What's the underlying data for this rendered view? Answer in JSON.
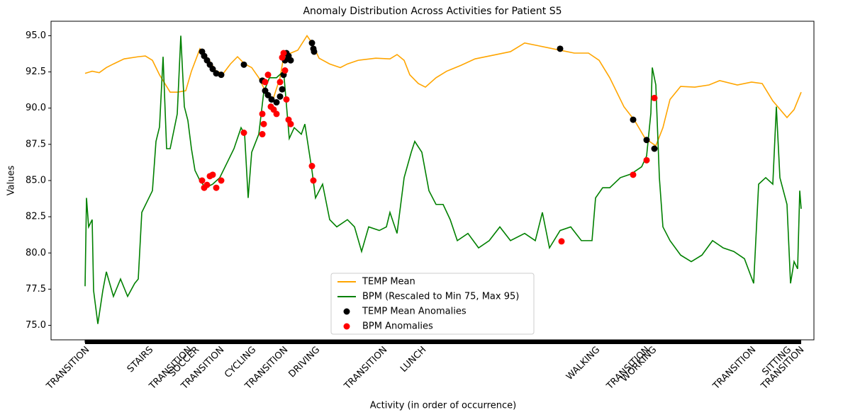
{
  "chart_data": {
    "type": "line",
    "title": "Anomaly Distribution Across Activities for Patient S5",
    "x_label": "Activity (in order of occurrence)",
    "y_label": "Values",
    "xlim": [
      -48,
      1028
    ],
    "ylim": [
      74,
      96
    ],
    "xticks": [
      {
        "value": 0,
        "label": "TRANSITION"
      },
      {
        "value": 90,
        "label": "STAIRS"
      },
      {
        "value": 145,
        "label": "TRANSITION"
      },
      {
        "value": 155,
        "label": "SOCCER"
      },
      {
        "value": 190,
        "label": "TRANSITION"
      },
      {
        "value": 235,
        "label": "CYCLING"
      },
      {
        "value": 280,
        "label": "TRANSITION"
      },
      {
        "value": 325,
        "label": "DRIVING"
      },
      {
        "value": 420,
        "label": "TRANSITION"
      },
      {
        "value": 475,
        "label": "LUNCH"
      },
      {
        "value": 720,
        "label": "WALKING"
      },
      {
        "value": 790,
        "label": "TRANSITION"
      },
      {
        "value": 800,
        "label": "WORKING"
      },
      {
        "value": 940,
        "label": "TRANSITION"
      },
      {
        "value": 990,
        "label": "SITTING"
      },
      {
        "value": 1008,
        "label": "TRANSITION"
      }
    ],
    "yticks": [
      {
        "value": 75,
        "label": "75.0"
      },
      77.5,
      {
        "value": 80,
        "label": "80.0"
      },
      82.5,
      {
        "value": 85,
        "label": "85.0"
      },
      87.5,
      {
        "value": 90,
        "label": "90.0"
      },
      92.5,
      {
        "value": 95,
        "label": "95.0"
      }
    ],
    "legend": "lower center",
    "series": [
      {
        "name": "TEMP Mean",
        "style": "line",
        "color": "#ffa500",
        "x": [
          0,
          10,
          20,
          30,
          40,
          55,
          75,
          85,
          95,
          105,
          120,
          130,
          142,
          150,
          162,
          175,
          185,
          195,
          205,
          215,
          225,
          235,
          245,
          255,
          265,
          275,
          280,
          290,
          300,
          313,
          320,
          330,
          345,
          360,
          370,
          385,
          410,
          430,
          440,
          450,
          458,
          470,
          480,
          495,
          510,
          530,
          550,
          580,
          600,
          620,
          640,
          670,
          690,
          710,
          725,
          740,
          760,
          775,
          790,
          805,
          815,
          825,
          840,
          860,
          880,
          895,
          920,
          940,
          955,
          970,
          990,
          1000,
          1010
        ],
        "values": [
          92.4,
          92.55,
          92.45,
          92.8,
          93.05,
          93.4,
          93.55,
          93.6,
          93.3,
          92.3,
          91.1,
          91.1,
          91.2,
          92.55,
          94.1,
          93.3,
          92.55,
          92.4,
          93.05,
          93.55,
          93.05,
          92.8,
          92.1,
          91.1,
          90.6,
          92.1,
          93.55,
          93.8,
          94.0,
          95.0,
          94.5,
          93.45,
          93.05,
          92.8,
          93.05,
          93.3,
          93.45,
          93.4,
          93.7,
          93.3,
          92.3,
          91.7,
          91.45,
          92.1,
          92.55,
          92.95,
          93.4,
          93.7,
          93.9,
          94.5,
          94.3,
          94.0,
          93.8,
          93.8,
          93.3,
          92.1,
          90.1,
          89.15,
          87.9,
          87.4,
          88.65,
          90.6,
          91.5,
          91.45,
          91.6,
          91.9,
          91.6,
          91.8,
          91.7,
          90.5,
          89.35,
          89.9,
          91.1
        ]
      },
      {
        "name": "BPM (Rescaled to Min 75, Max 95)",
        "style": "line",
        "color": "#008000",
        "x": [
          0,
          2,
          5,
          10,
          12,
          18,
          25,
          30,
          40,
          50,
          60,
          70,
          75,
          80,
          90,
          95,
          100,
          105,
          110,
          115,
          120,
          130,
          135,
          140,
          145,
          150,
          155,
          162,
          170,
          180,
          190,
          200,
          210,
          220,
          225,
          230,
          235,
          245,
          252,
          260,
          270,
          280,
          288,
          295,
          305,
          310,
          320,
          325,
          335,
          345,
          355,
          370,
          380,
          390,
          400,
          415,
          425,
          430,
          440,
          450,
          460,
          465,
          475,
          485,
          495,
          505,
          515,
          525,
          540,
          555,
          570,
          585,
          600,
          620,
          635,
          645,
          655,
          670,
          685,
          700,
          715,
          720,
          730,
          740,
          755,
          770,
          785,
          792,
          798,
          800,
          805,
          810,
          815,
          825,
          840,
          855,
          870,
          885,
          900,
          915,
          930,
          943,
          950,
          960,
          970,
          975,
          980,
          990,
          995,
          1000,
          1005,
          1008,
          1010
        ],
        "values": [
          77.7,
          83.8,
          81.8,
          82.3,
          77.4,
          75.1,
          77.4,
          78.7,
          77.0,
          78.2,
          77.0,
          77.9,
          78.2,
          82.8,
          83.8,
          84.3,
          87.7,
          88.7,
          93.55,
          87.2,
          87.2,
          89.6,
          95.0,
          90.1,
          89.15,
          87.2,
          85.7,
          85.0,
          84.5,
          84.75,
          85.2,
          86.2,
          87.2,
          88.65,
          88.2,
          83.8,
          86.95,
          88.2,
          91.1,
          92.1,
          92.1,
          92.55,
          87.9,
          88.65,
          88.2,
          88.9,
          85.7,
          83.8,
          84.75,
          82.3,
          81.8,
          82.3,
          81.8,
          80.1,
          81.8,
          81.55,
          81.8,
          82.8,
          81.35,
          85.2,
          86.95,
          87.7,
          86.95,
          84.3,
          83.35,
          83.35,
          82.3,
          80.85,
          81.35,
          80.35,
          80.85,
          81.8,
          80.85,
          81.35,
          80.85,
          82.8,
          80.35,
          81.55,
          81.8,
          80.85,
          80.85,
          83.8,
          84.5,
          84.5,
          85.2,
          85.45,
          85.95,
          86.7,
          89.65,
          92.8,
          91.6,
          85.2,
          81.8,
          80.85,
          79.85,
          79.4,
          79.85,
          80.85,
          80.35,
          80.1,
          79.6,
          77.9,
          84.75,
          85.2,
          84.75,
          90.1,
          85.2,
          83.35,
          77.9,
          79.4,
          78.9,
          84.3,
          83.05
        ]
      },
      {
        "name": "TEMP Mean Anomalies",
        "style": "marker",
        "color": "#000000",
        "x": [
          165,
          168,
          172,
          176,
          180,
          185,
          192,
          224,
          250,
          254,
          258,
          263,
          270,
          275,
          278,
          280,
          282,
          284,
          287,
          290,
          320,
          322,
          323,
          670,
          773,
          792,
          803
        ],
        "values": [
          93.9,
          93.6,
          93.3,
          93.0,
          92.7,
          92.4,
          92.3,
          93.0,
          91.9,
          91.2,
          90.9,
          90.6,
          90.4,
          90.8,
          91.3,
          92.3,
          93.3,
          93.8,
          93.6,
          93.3,
          94.5,
          94.1,
          93.9,
          94.1,
          89.2,
          87.8,
          87.2
        ]
      },
      {
        "name": "BPM Anomalies",
        "style": "marker",
        "color": "#ff0000",
        "x": [
          165,
          168,
          172,
          176,
          180,
          185,
          192,
          224,
          250,
          250,
          252,
          254,
          258,
          262,
          266,
          270,
          275,
          278,
          280,
          282,
          284,
          287,
          290,
          320,
          322,
          672,
          773,
          792,
          803
        ],
        "values": [
          85.0,
          84.5,
          84.7,
          85.3,
          85.4,
          84.5,
          85.0,
          88.3,
          88.2,
          89.6,
          88.9,
          91.8,
          92.3,
          90.1,
          89.9,
          89.6,
          91.8,
          93.5,
          93.8,
          92.6,
          90.6,
          89.2,
          88.9,
          86.0,
          85.0,
          80.8,
          85.4,
          86.4,
          90.7
        ]
      }
    ]
  }
}
